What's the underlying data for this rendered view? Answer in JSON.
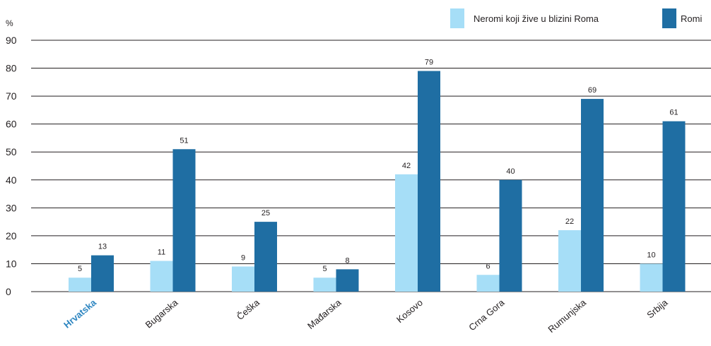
{
  "chart_data": {
    "type": "bar",
    "ylabel": "%",
    "ylim": [
      0,
      90
    ],
    "yticks": [
      0,
      10,
      20,
      30,
      40,
      50,
      60,
      70,
      80,
      90
    ],
    "grid": true,
    "legend_position": "top-right",
    "categories": [
      "Hrvatska",
      "Bugarska",
      "Češka",
      "Mađarska",
      "Kosovo",
      "Crna Gora",
      "Rumunjska",
      "Srbija"
    ],
    "highlighted_category": "Hrvatska",
    "series": [
      {
        "name": "Neromi koji žive u blizini Roma",
        "color": "#a6def7",
        "values": [
          5,
          11,
          9,
          5,
          42,
          6,
          22,
          10
        ]
      },
      {
        "name": "Romi",
        "color": "#1f6ea3",
        "values": [
          13,
          51,
          25,
          8,
          79,
          40,
          69,
          61
        ]
      }
    ]
  }
}
